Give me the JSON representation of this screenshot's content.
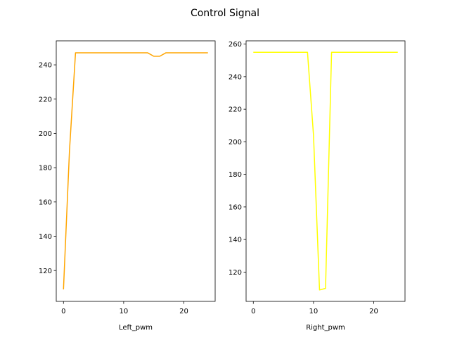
{
  "figure": {
    "suptitle": "Control Signal"
  },
  "chart_data": [
    {
      "type": "line",
      "xlabel": "Left_pwm",
      "xlim": [
        -1.2,
        25.2
      ],
      "ylim": [
        102,
        254
      ],
      "xticks": [
        0,
        10,
        20
      ],
      "yticks": [
        120,
        140,
        160,
        180,
        200,
        220,
        240
      ],
      "grid": false,
      "series": [
        {
          "color": "#ffa500",
          "x": [
            0,
            1,
            2,
            3,
            4,
            5,
            6,
            7,
            8,
            9,
            10,
            11,
            12,
            13,
            14,
            15,
            16,
            17,
            18,
            19,
            20,
            21,
            22,
            23,
            24
          ],
          "y": [
            109,
            190,
            247,
            247,
            247,
            247,
            247,
            247,
            247,
            247,
            247,
            247,
            247,
            247,
            247,
            245,
            245,
            247,
            247,
            247,
            247,
            247,
            247,
            247,
            247
          ]
        }
      ]
    },
    {
      "type": "line",
      "xlabel": "Right_pwm",
      "xlim": [
        -1.2,
        25.2
      ],
      "ylim": [
        102,
        262
      ],
      "xticks": [
        0,
        10,
        20
      ],
      "yticks": [
        120,
        140,
        160,
        180,
        200,
        220,
        240,
        260
      ],
      "grid": false,
      "series": [
        {
          "color": "#ffff00",
          "x": [
            0,
            1,
            2,
            3,
            4,
            5,
            6,
            7,
            8,
            9,
            10,
            11,
            12,
            13,
            14,
            15,
            16,
            17,
            18,
            19,
            20,
            21,
            22,
            23,
            24
          ],
          "y": [
            255,
            255,
            255,
            255,
            255,
            255,
            255,
            255,
            255,
            255,
            204,
            109,
            110,
            255,
            255,
            255,
            255,
            255,
            255,
            255,
            255,
            255,
            255,
            255,
            255
          ]
        }
      ]
    }
  ]
}
